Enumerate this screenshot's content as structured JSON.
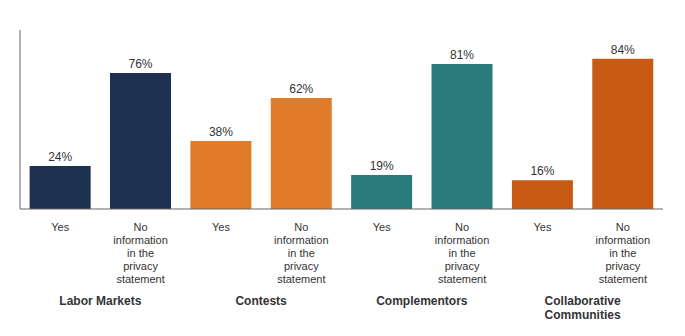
{
  "chart_data": {
    "type": "bar",
    "categories": [
      "Yes",
      "No\ninformation\nin the\nprivacy\nstatement",
      "Yes",
      "No\ninformation\nin the\nprivacy\nstatement",
      "Yes",
      "No\ninformation\nin the\nprivacy\nstatement",
      "Yes",
      "No\ninformation\nin the\nprivacy\nstatement"
    ],
    "groups": [
      "Labor Markets",
      "Contests",
      "Complementors",
      "Collaborative\nCommunities"
    ],
    "values": [
      24,
      76,
      38,
      62,
      19,
      81,
      16,
      84
    ],
    "value_labels": [
      "24%",
      "76%",
      "38%",
      "62%",
      "19%",
      "81%",
      "16%",
      "84%"
    ],
    "colors": [
      "#1e3050",
      "#1e3050",
      "#e07b2a",
      "#e07b2a",
      "#2a7b7b",
      "#2a7b7b",
      "#c85a14",
      "#c85a14"
    ],
    "ylim": [
      0,
      100
    ],
    "grid": false,
    "data_labels": true,
    "tick_labels": "x"
  }
}
